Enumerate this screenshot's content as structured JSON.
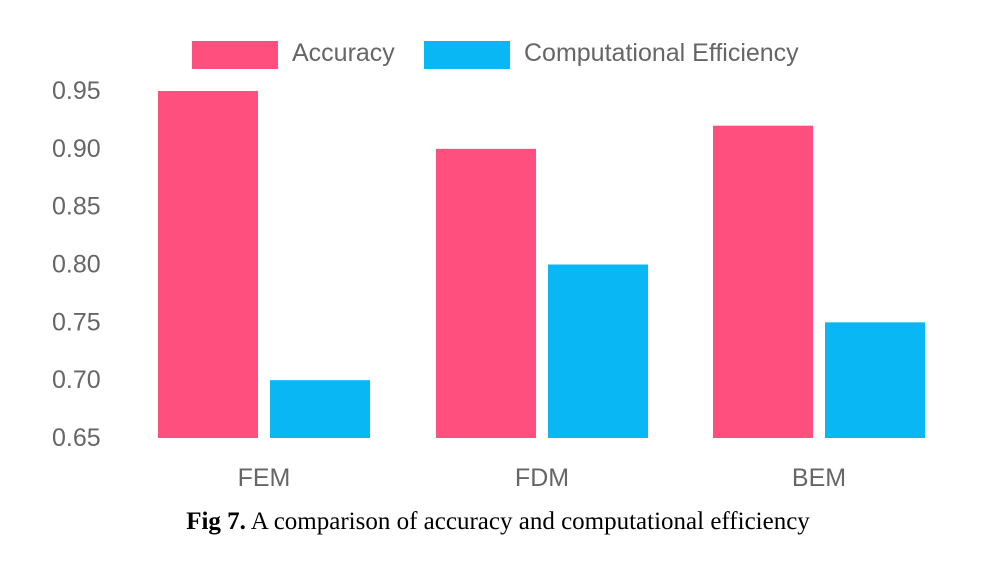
{
  "chart_data": {
    "type": "bar",
    "categories": [
      "FEM",
      "FDM",
      "BEM"
    ],
    "series": [
      {
        "name": "Accuracy",
        "values": [
          0.95,
          0.9,
          0.92
        ],
        "color": "#FF4F7E"
      },
      {
        "name": "Computational Efficiency",
        "values": [
          0.7,
          0.8,
          0.75
        ],
        "color": "#0AB7F5"
      }
    ],
    "title": "",
    "xlabel": "",
    "ylabel": "",
    "ylim": [
      0.65,
      0.95
    ],
    "yticks": [
      "0.95",
      "0.90",
      "0.85",
      "0.80",
      "0.75",
      "0.70",
      "0.65"
    ],
    "ytick_values": [
      0.95,
      0.9,
      0.85,
      0.8,
      0.75,
      0.7,
      0.65
    ],
    "legend_position": "top",
    "grid": false
  },
  "caption": {
    "label": "Fig 7.",
    "text": " A comparison of accuracy and computational efficiency"
  }
}
